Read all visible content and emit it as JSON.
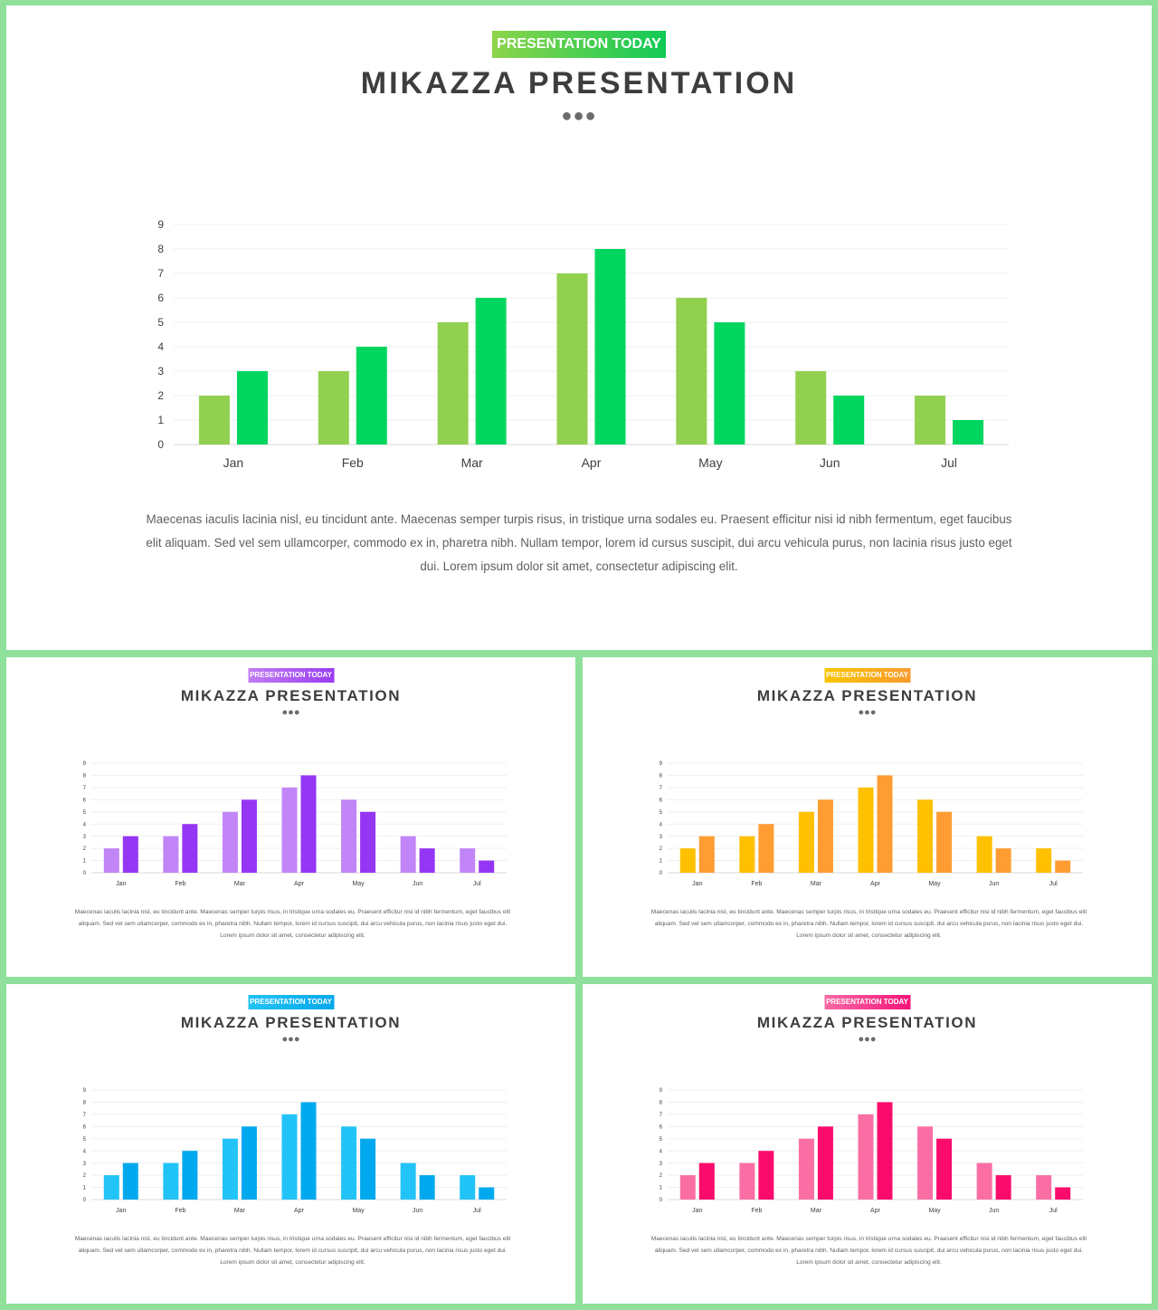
{
  "text": {
    "badge": "PRESENTATION TODAY",
    "title": "MIKAZZA PRESENTATION",
    "dots": "●●●",
    "body": "Maecenas iaculis lacinia nisl, eu tincidunt ante. Maecenas semper turpis risus, in tristique urna sodales eu. Praesent efficitur nisi id nibh fermentum, eget faucibus elit aliquam. Sed vel sem ullamcorper, commodo ex in, pharetra nibh. Nullam tempor, lorem id cursus suscipit, dui arcu vehicula purus, non lacinia risus justo eget dui. Lorem ipsum dolor sit amet, consectetur adipiscing elit."
  },
  "themes": [
    {
      "name": "green",
      "badge_color_start": "#8cd44a",
      "badge_color_end": "#12c957",
      "series_colors": [
        "#92d050",
        "#00d65f"
      ]
    },
    {
      "name": "purple",
      "badge_color_start": "#c07cf2",
      "badge_color_end": "#9a3cf2",
      "series_colors": [
        "#c285f7",
        "#9536f5"
      ]
    },
    {
      "name": "orange",
      "badge_color_start": "#f9c400",
      "badge_color_end": "#f99a2e",
      "series_colors": [
        "#ffc000",
        "#ff9d33"
      ]
    },
    {
      "name": "blue",
      "badge_color_start": "#22c2f5",
      "badge_color_end": "#07a8ea",
      "series_colors": [
        "#22c4f7",
        "#00a9ee"
      ]
    },
    {
      "name": "pink",
      "badge_color_start": "#f96aa4",
      "badge_color_end": "#f5157a",
      "series_colors": [
        "#fb6ea3",
        "#fb0c6c"
      ]
    }
  ],
  "chart_data": {
    "type": "bar",
    "categories": [
      "Jan",
      "Feb",
      "Mar",
      "Apr",
      "May",
      "Jun",
      "Jul"
    ],
    "series": [
      {
        "values": [
          2,
          3,
          5,
          7,
          6,
          3,
          2
        ]
      },
      {
        "values": [
          3,
          4,
          6,
          8,
          5,
          2,
          1
        ]
      }
    ],
    "ylim": [
      0,
      9
    ],
    "yticks": [
      0,
      1,
      2,
      3,
      4,
      5,
      6,
      7,
      8,
      9
    ],
    "grid": true,
    "legend": "none",
    "title": "",
    "xlabel": "",
    "ylabel": ""
  }
}
